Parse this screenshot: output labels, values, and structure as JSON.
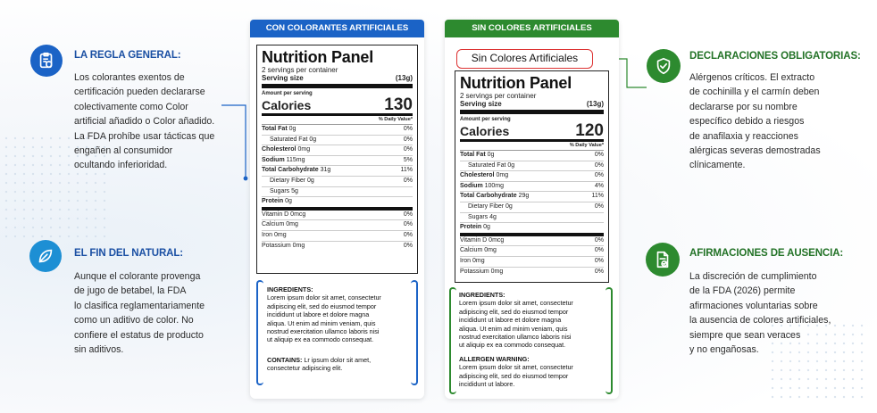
{
  "left_top": {
    "title": "LA REGLA GENERAL:",
    "lines": [
      "Los colorantes exentos de",
      "certificación pueden declararse",
      "colectivamente como Color",
      "artificial añadido o Color añadido.",
      "La FDA prohíbe usar tácticas que",
      "engañen al consumidor",
      "ocultando inferioridad."
    ],
    "icon": "clipboard-shield-icon"
  },
  "left_bottom": {
    "title": "EL FIN DEL NATURAL:",
    "lines": [
      "Aunque el colorante provenga",
      "de jugo de betabel, la FDA",
      "lo clasifica reglamentariamente",
      "como un aditivo de color. No",
      "confiere el estatus de producto",
      "sin aditivos."
    ],
    "icon": "leaf-icon"
  },
  "right_top": {
    "title": "DECLARACIONES OBLIGATORIAS:",
    "lines": [
      "Alérgenos críticos. El extracto",
      "de cochinilla y el carmín deben",
      "declararse por su nombre",
      "específico debido a riesgos",
      "de anafilaxia y reacciones",
      "alérgicas severas demostradas",
      "clínicamente."
    ],
    "icon": "shield-check-icon"
  },
  "right_bottom": {
    "title": "AFIRMACIONES DE AUSENCIA:",
    "lines": [
      "La discreción de cumplimiento",
      "de la FDA (2026) permite",
      "afirmaciones voluntarias sobre",
      "la ausencia de colores artificiales,",
      "siempre que sean veraces",
      "y no engañosas."
    ],
    "icon": "document-check-icon"
  },
  "panel_a": {
    "tab": "CON COLORANTES ARTIFICIALES",
    "title": "Nutrition Panel",
    "servings": "2 servings per container",
    "serving_size_label": "Serving size",
    "serving_size_value": "(13g)",
    "amount_per_serving": "Amount per serving",
    "calories_label": "Calories",
    "calories": "130",
    "dv_header": "% Daily Value*",
    "rows": [
      {
        "label": "Total Fat",
        "bold": "Total Fat",
        "amount": "0g",
        "dv": "0%"
      },
      {
        "label": "Saturated Fat",
        "amount": "0g",
        "dv": "0%",
        "indent": true
      },
      {
        "label": "Cholesterol",
        "bold": "Cholesterol",
        "amount": "0mg",
        "dv": "0%"
      },
      {
        "label": "Sodium",
        "bold": "Sodium",
        "amount": "115mg",
        "dv": "5%"
      },
      {
        "label": "Total Carbohydrate",
        "bold": "Total Carbohydrate",
        "amount": "31g",
        "dv": "11%"
      },
      {
        "label": "Dietary Fiber",
        "amount": "0g",
        "dv": "0%",
        "indent": true
      },
      {
        "label": "Sugars",
        "amount": "5g",
        "dv": "",
        "indent": true
      },
      {
        "label": "Protein",
        "bold": "Protein",
        "amount": "0g",
        "dv": "",
        "thick": true
      },
      {
        "label": "Vitamin D",
        "amount": "0mcg",
        "dv": "0%"
      },
      {
        "label": "Calcium",
        "amount": "0mg",
        "dv": "0%"
      },
      {
        "label": "Iron",
        "amount": "0mg",
        "dv": "0%"
      },
      {
        "label": "Potassium",
        "amount": "0mg",
        "dv": "0%",
        "last": true
      }
    ],
    "ingredients_label": "INGREDIENTS:",
    "ingredients_lines": [
      "Lorem ipsum dolor sit amet, consectetur",
      "adipiscing elit, sed do eiusmod tempor",
      "incididunt ut labore et dolore magna",
      "aliqua. Ut enim ad minim veniam, quis",
      "nostrud exercitation ullamco laboris nisi",
      "ut aliquip ex ea commodo consequat."
    ],
    "contains_label": "CONTAINS:",
    "contains_lines": [
      "Lr ipsum dolor sit amet,",
      "consectetur adipiscing elit."
    ]
  },
  "panel_b": {
    "tab": "SIN COLORES ARTIFICIALES",
    "badge": "Sin Colores Artificiales",
    "title": "Nutrition Panel",
    "servings": "2 servings per container",
    "serving_size_label": "Serving size",
    "serving_size_value": "(13g)",
    "amount_per_serving": "Amount per serving",
    "calories_label": "Calories",
    "calories": "120",
    "dv_header": "% Daily Value*",
    "rows": [
      {
        "label": "Total Fat",
        "bold": "Total Fat",
        "amount": "0g",
        "dv": "0%"
      },
      {
        "label": "Saturated Fat",
        "amount": "0g",
        "dv": "0%",
        "indent": true
      },
      {
        "label": "Cholesterol",
        "bold": "Cholesterol",
        "amount": "0mg",
        "dv": "0%"
      },
      {
        "label": "Sodium",
        "bold": "Sodium",
        "amount": "100mg",
        "dv": "4%"
      },
      {
        "label": "Total Carbohydrate",
        "bold": "Total Carbohydrate",
        "amount": "29g",
        "dv": "11%"
      },
      {
        "label": "Dietary Fiber",
        "amount": "0g",
        "dv": "0%",
        "indent": true
      },
      {
        "label": "Sugars",
        "amount": "4g",
        "dv": "",
        "indent": true
      },
      {
        "label": "Protein",
        "bold": "Protein",
        "amount": "0g",
        "dv": "",
        "thick": true
      },
      {
        "label": "Vitamin D",
        "amount": "0mcg",
        "dv": "0%"
      },
      {
        "label": "Calcium",
        "amount": "0mg",
        "dv": "0%"
      },
      {
        "label": "Iron",
        "amount": "0mg",
        "dv": "0%"
      },
      {
        "label": "Potassium",
        "amount": "0mg",
        "dv": "0%",
        "last": true
      }
    ],
    "ingredients_label": "INGREDIENTS:",
    "ingredients_lines": [
      "Lorem ipsum dolor sit amet, consectetur",
      "adipiscing elit, sed do eiusmod tempor",
      "incididunt ut labore et dolore magna",
      "aliqua. Ut enim ad minim veniam, quis",
      "nostrud exercitation ullamco laboris nisi",
      "ut aliquip ex ea commodo consequat."
    ],
    "allergen_label": "ALLERGEN WARNING:",
    "allergen_lines": [
      "Lorem ipsum dolor sit amet, consectetur",
      "adipiscing elit, sed do eiusmod tempor",
      "incididunt ut labore."
    ]
  },
  "colors": {
    "blue": "#1b63c6",
    "green": "#2d8a2f",
    "red": "#d33333"
  }
}
